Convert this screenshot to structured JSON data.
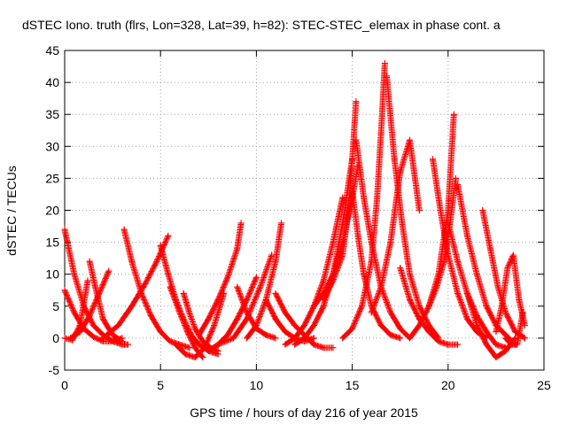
{
  "chart_data": {
    "type": "scatter",
    "title": "dSTEC Iono. truth (flrs, Lon=328, Lat=39, h=82): STEC-STEC_elemax in phase cont. a",
    "xlabel": "GPS time / hours of day 216 of year 2015",
    "ylabel": "dSTEC  / TECUs",
    "xlim": [
      0,
      25
    ],
    "ylim": [
      -5,
      45
    ],
    "xticks": [
      0,
      5,
      10,
      15,
      20,
      25
    ],
    "yticks": [
      -5,
      0,
      5,
      10,
      15,
      20,
      25,
      30,
      35,
      40,
      45
    ],
    "grid": true,
    "marker": "+",
    "color": "#ff0000",
    "series": [
      {
        "x": [
          0.0,
          0.5,
          1.0,
          1.5,
          2.0,
          2.5,
          3.0,
          3.3
        ],
        "y": [
          17,
          10,
          5,
          2,
          0.5,
          -0.5,
          -1,
          -1
        ]
      },
      {
        "x": [
          0.0,
          0.5,
          1.0,
          1.5,
          2.0,
          2.5,
          3.0
        ],
        "y": [
          7.5,
          4,
          1.5,
          0.2,
          -0.5,
          -0.5,
          0
        ]
      },
      {
        "x": [
          0.0,
          0.4,
          0.8,
          1.2
        ],
        "y": [
          0,
          -0.3,
          2,
          9
        ]
      },
      {
        "x": [
          0.3,
          0.8,
          1.3,
          1.8,
          2.3
        ],
        "y": [
          0,
          1,
          3.5,
          7,
          10.5
        ]
      },
      {
        "x": [
          1.3,
          1.6,
          2.0,
          2.5,
          3.0
        ],
        "y": [
          12,
          8,
          3,
          0.5,
          -0.5
        ]
      },
      {
        "x": [
          2.0,
          2.8,
          3.5,
          4.2,
          4.8,
          5.4
        ],
        "y": [
          0,
          2,
          5,
          8.5,
          12,
          16
        ]
      },
      {
        "x": [
          3.1,
          3.5,
          4.0,
          4.5,
          5.0,
          5.5,
          6.0,
          6.5
        ],
        "y": [
          17,
          12,
          7,
          3.5,
          1,
          -0.5,
          -1,
          -1.5
        ]
      },
      {
        "x": [
          5.0,
          5.4,
          5.8,
          6.2,
          6.6,
          7.0,
          7.5,
          8.0
        ],
        "y": [
          14.5,
          10,
          6,
          3,
          0.5,
          -1,
          -2,
          -2.5
        ]
      },
      {
        "x": [
          5.5,
          6.0,
          6.4,
          6.8,
          7.2
        ],
        "y": [
          8,
          4,
          1,
          -1.5,
          -3
        ]
      },
      {
        "x": [
          6.2,
          6.5,
          6.8,
          7.2,
          7.6,
          8.0
        ],
        "y": [
          7,
          4,
          1.5,
          -0.5,
          -1.5,
          -2
        ]
      },
      {
        "x": [
          5.8,
          6.3,
          6.8,
          7.3,
          7.8,
          8.3
        ],
        "y": [
          -1,
          -2.5,
          -3,
          -1.5,
          2,
          7
        ]
      },
      {
        "x": [
          7.0,
          7.5,
          8.0,
          8.5,
          9.0,
          9.2
        ],
        "y": [
          0.5,
          3,
          6,
          9.5,
          14,
          18
        ]
      },
      {
        "x": [
          7.5,
          8.0,
          8.5,
          9.0,
          9.5,
          10.0
        ],
        "y": [
          -2,
          -1,
          0.5,
          3,
          6,
          9.5
        ]
      },
      {
        "x": [
          8.0,
          8.8,
          9.5,
          10.2,
          10.8
        ],
        "y": [
          -1,
          0,
          3,
          8,
          13
        ]
      },
      {
        "x": [
          9.0,
          9.5,
          10.0,
          10.5,
          11.0
        ],
        "y": [
          8,
          4,
          1.5,
          0.5,
          0
        ]
      },
      {
        "x": [
          9.5,
          10.0,
          10.5,
          11.0,
          11.3
        ],
        "y": [
          0,
          2,
          6,
          12,
          18
        ]
      },
      {
        "x": [
          10.5,
          11.0,
          11.5,
          12.0,
          12.5,
          13.0
        ],
        "y": [
          6,
          3,
          1,
          0,
          -0.5,
          0
        ]
      },
      {
        "x": [
          11.0,
          11.5,
          12.0,
          12.5,
          13.0,
          13.5,
          14.0
        ],
        "y": [
          7,
          4,
          2,
          0.5,
          -1,
          -1.5,
          -1.5
        ]
      },
      {
        "x": [
          11.5,
          12.0,
          12.5,
          13.0,
          13.5,
          14.0,
          14.5
        ],
        "y": [
          -1,
          0,
          2,
          5,
          9,
          15,
          22
        ]
      },
      {
        "x": [
          12.0,
          12.5,
          13.0,
          13.5,
          14.0,
          14.5,
          15.0
        ],
        "y": [
          -1,
          0,
          2,
          5,
          10,
          18,
          28
        ]
      },
      {
        "x": [
          13.0,
          13.5,
          14.0,
          14.5,
          15.0,
          15.3
        ],
        "y": [
          5,
          7,
          10,
          15,
          22,
          27
        ]
      },
      {
        "x": [
          13.5,
          14.0,
          14.5,
          14.8,
          15.0,
          15.2
        ],
        "y": [
          6,
          9,
          13,
          20,
          28,
          37
        ]
      },
      {
        "x": [
          15.0,
          15.3,
          15.6,
          16.0,
          16.5,
          17.0,
          17.5
        ],
        "y": [
          23,
          16,
          10,
          5,
          2,
          0.5,
          0
        ]
      },
      {
        "x": [
          15.2,
          15.6,
          16.0,
          16.5,
          17.0,
          17.5,
          18.0
        ],
        "y": [
          31,
          22,
          15,
          8,
          4,
          1.5,
          0
        ]
      },
      {
        "x": [
          14.5,
          15.0,
          15.5,
          16.0,
          16.3,
          16.5,
          16.7
        ],
        "y": [
          0,
          1.5,
          5,
          12,
          22,
          32,
          43
        ]
      },
      {
        "x": [
          16.8,
          17.2,
          17.6,
          18.0,
          18.5,
          19.0,
          19.5
        ],
        "y": [
          41,
          28,
          18,
          10,
          5,
          2,
          0
        ]
      },
      {
        "x": [
          16.0,
          16.5,
          17.0,
          17.5,
          18.0,
          18.5
        ],
        "y": [
          4,
          8,
          15,
          26,
          31,
          20
        ]
      },
      {
        "x": [
          17.5,
          18.0,
          18.5,
          19.0,
          19.5,
          20.0,
          20.5
        ],
        "y": [
          11,
          6,
          3,
          1,
          -0.5,
          -1,
          -1
        ]
      },
      {
        "x": [
          18.0,
          18.5,
          19.0,
          19.5,
          20.0,
          20.3
        ],
        "y": [
          0,
          2,
          5,
          10,
          20,
          35
        ]
      },
      {
        "x": [
          19.2,
          19.6,
          20.0,
          20.5,
          21.0,
          21.5,
          22.0
        ],
        "y": [
          28,
          20,
          13,
          7,
          3,
          1,
          0
        ]
      },
      {
        "x": [
          19.0,
          19.4,
          19.8,
          20.1,
          20.4
        ],
        "y": [
          5,
          8,
          12,
          18,
          25
        ]
      },
      {
        "x": [
          20.5,
          21.0,
          21.5,
          22.0,
          22.5,
          23.0,
          23.5
        ],
        "y": [
          24,
          16,
          10,
          5,
          2,
          0.5,
          -1
        ]
      },
      {
        "x": [
          20.0,
          20.5,
          21.0,
          21.5,
          22.0,
          22.5,
          23.0
        ],
        "y": [
          18,
          12,
          7,
          3.5,
          1,
          -1,
          -1.5
        ]
      },
      {
        "x": [
          21.0,
          21.5,
          22.0,
          22.5,
          23.0,
          23.5
        ],
        "y": [
          7,
          2,
          -1,
          -3,
          -2,
          0
        ]
      },
      {
        "x": [
          21.8,
          22.2,
          22.6,
          23.0,
          23.5,
          24.0
        ],
        "y": [
          20,
          14,
          8,
          4,
          1,
          0
        ]
      },
      {
        "x": [
          22.5,
          22.8,
          23.1,
          23.4,
          23.7,
          24.0
        ],
        "y": [
          1,
          5,
          11,
          13,
          6,
          2
        ]
      },
      {
        "x": [
          23.0,
          23.3,
          23.6,
          23.9
        ],
        "y": [
          0,
          -1,
          -1,
          4
        ]
      }
    ]
  }
}
